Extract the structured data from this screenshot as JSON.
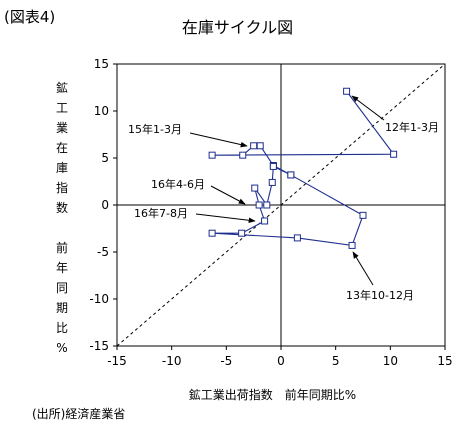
{
  "figure_label": "(図表4)",
  "source_note": "(出所)経済産業省",
  "chart_data": {
    "type": "scatter",
    "title": "在庫サイクル図",
    "xlabel": "鉱工業出荷指数　前年同期比%",
    "ylabel_part1": "鉱工業在庫指数",
    "ylabel_part2": "前年同期比%",
    "xlim": [
      -15,
      15
    ],
    "ylim": [
      -15,
      15
    ],
    "xticks": [
      -15,
      -10,
      -5,
      0,
      5,
      10,
      15
    ],
    "yticks": [
      -15,
      -10,
      -5,
      0,
      5,
      10,
      15
    ],
    "xtick_labels": [
      "-15",
      "-10",
      "-5",
      "0",
      "5",
      "10",
      "15"
    ],
    "ytick_labels": [
      "-15",
      "-10",
      "-5",
      "0",
      "5",
      "10",
      "15"
    ],
    "grid": false,
    "reference_line": "45-degree dashed line",
    "series": [
      {
        "x": [
          6.0,
          10.3,
          -6.3,
          -3.5,
          -2.5,
          -1.9,
          -0.7,
          0.9,
          -0.7,
          -0.8,
          -1.3,
          -2.4,
          -2.0,
          -1.5,
          -3.6,
          -6.3,
          1.5,
          6.5,
          7.5,
          0.9
        ],
        "y": [
          12.1,
          5.4,
          5.3,
          5.3,
          6.3,
          6.3,
          4.2,
          3.2,
          4.1,
          2.4,
          0.0,
          1.8,
          0.0,
          -1.7,
          -3.0,
          -3.0,
          -3.5,
          -4.3,
          -1.1,
          3.2
        ]
      }
    ],
    "annotations": [
      {
        "text": "12年1-3月",
        "point_index": 0
      },
      {
        "text": "15年1-3月",
        "point_index": 4
      },
      {
        "text": "16年4-6月",
        "point_index": 11
      },
      {
        "text": "16年7-8月",
        "point_index": 13
      },
      {
        "text": "13年10-12月",
        "point_index": 17
      }
    ]
  }
}
